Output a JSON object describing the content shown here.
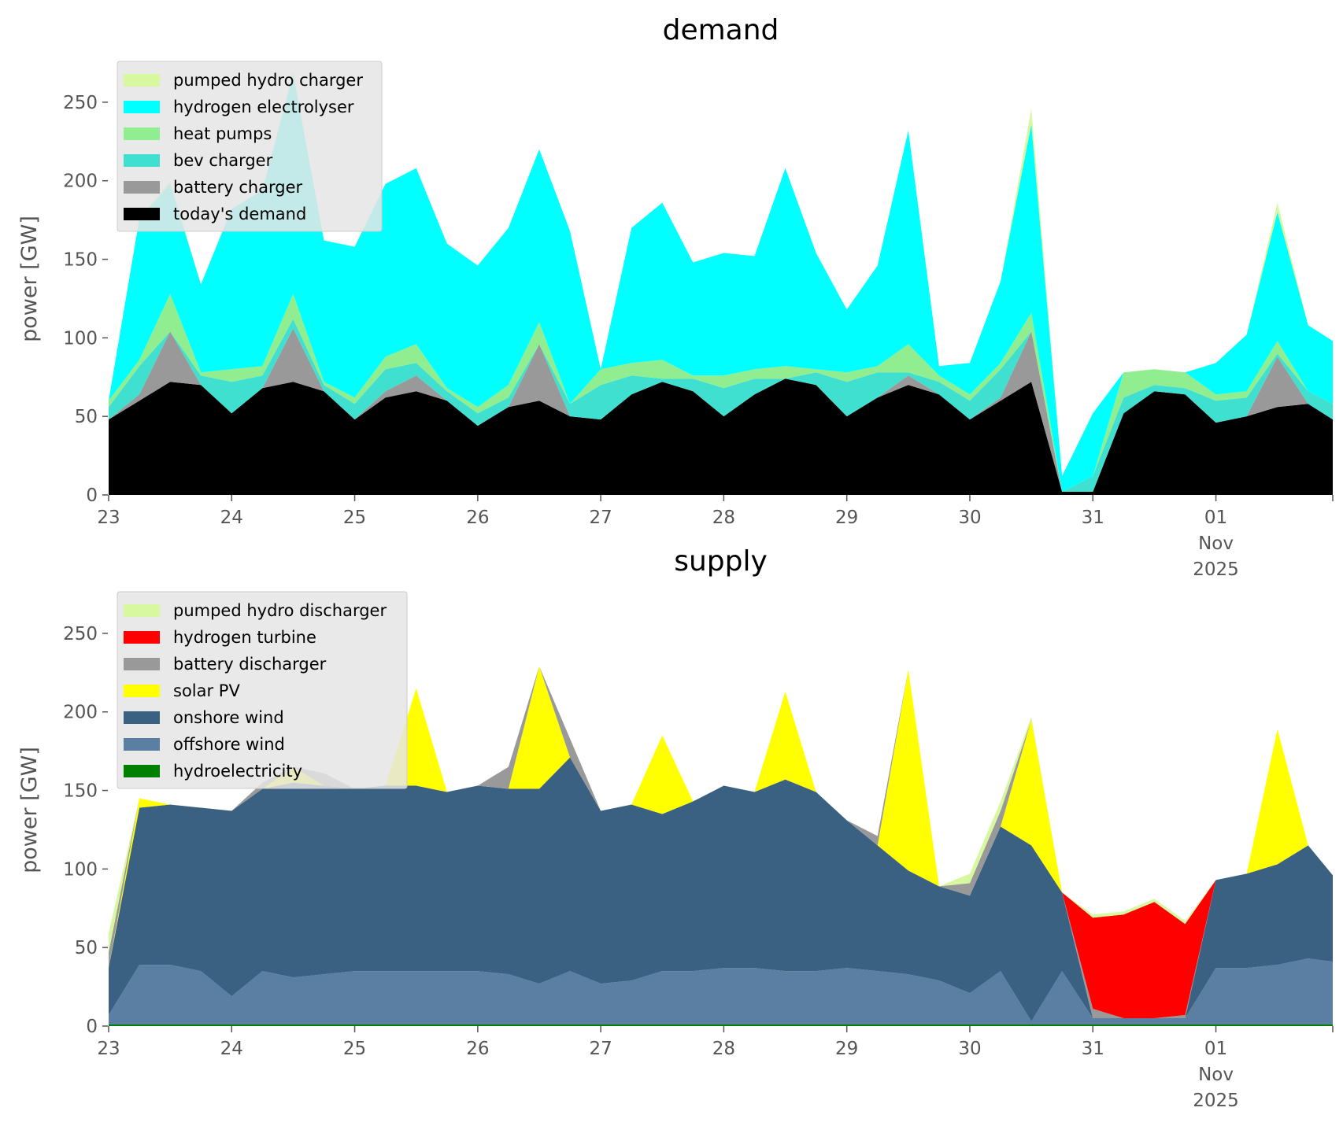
{
  "chart_data": [
    {
      "type": "area",
      "stacked": true,
      "title": "demand",
      "ylabel": "power [GW]",
      "xlabel": "",
      "ylim": [
        0,
        275
      ],
      "yticks": [
        0,
        50,
        100,
        150,
        200,
        250
      ],
      "x_days": [
        23,
        23.25,
        23.5,
        23.75,
        24,
        24.25,
        24.5,
        24.75,
        25,
        25.25,
        25.5,
        25.75,
        26,
        26.25,
        26.5,
        26.75,
        27,
        27.25,
        27.5,
        27.75,
        28,
        28.25,
        28.5,
        28.75,
        29,
        29.25,
        29.5,
        29.75,
        30,
        30.25,
        30.5,
        30.75,
        31,
        31.25,
        31.5,
        31.75,
        32,
        32.25,
        32.5,
        32.75,
        32.95
      ],
      "xtick_labels": [
        "23",
        "24",
        "25",
        "26",
        "27",
        "28",
        "29",
        "30",
        "31",
        "01\nNov\n2025"
      ],
      "xtick_values": [
        23,
        24,
        25,
        26,
        27,
        28,
        29,
        30,
        31,
        32
      ],
      "legend_position": "top-left",
      "series": [
        {
          "name": "today's demand",
          "color": "#000000",
          "values": [
            48,
            60,
            72,
            70,
            52,
            68,
            72,
            66,
            48,
            62,
            66,
            60,
            44,
            56,
            60,
            50,
            48,
            64,
            72,
            66,
            50,
            64,
            74,
            70,
            50,
            62,
            70,
            64,
            48,
            60,
            72,
            2,
            2,
            52,
            66,
            64,
            46,
            50,
            56,
            58,
            48
          ]
        },
        {
          "name": "battery charger",
          "color": "#999999",
          "values": [
            0,
            4,
            32,
            0,
            0,
            0,
            34,
            0,
            0,
            4,
            10,
            0,
            0,
            0,
            36,
            0,
            0,
            0,
            0,
            0,
            0,
            0,
            0,
            0,
            0,
            0,
            6,
            0,
            0,
            2,
            32,
            0,
            0,
            0,
            0,
            0,
            0,
            0,
            32,
            0,
            0
          ]
        },
        {
          "name": "bev charger",
          "color": "#40e0d0",
          "values": [
            8,
            18,
            0,
            6,
            20,
            8,
            6,
            4,
            10,
            14,
            8,
            6,
            8,
            6,
            0,
            8,
            22,
            12,
            2,
            8,
            18,
            10,
            0,
            8,
            22,
            16,
            2,
            8,
            12,
            18,
            0,
            0,
            10,
            10,
            4,
            4,
            14,
            12,
            2,
            8,
            10
          ]
        },
        {
          "name": "heat pumps",
          "color": "#90ee90",
          "values": [
            4,
            4,
            24,
            2,
            8,
            6,
            16,
            2,
            4,
            8,
            12,
            2,
            4,
            8,
            14,
            0,
            10,
            8,
            12,
            2,
            8,
            6,
            8,
            2,
            6,
            4,
            18,
            4,
            4,
            4,
            12,
            0,
            0,
            16,
            10,
            10,
            4,
            4,
            8,
            0,
            0
          ]
        },
        {
          "name": "hydrogen electrolyser",
          "color": "#00ffff",
          "values": [
            0,
            90,
            70,
            56,
            102,
            112,
            140,
            90,
            96,
            110,
            112,
            92,
            90,
            100,
            110,
            110,
            0,
            86,
            100,
            72,
            78,
            72,
            126,
            74,
            40,
            64,
            136,
            6,
            20,
            52,
            120,
            10,
            40,
            0,
            0,
            0,
            20,
            36,
            82,
            42,
            40
          ]
        },
        {
          "name": "pumped hydro charger",
          "color": "#d8f8a0",
          "values": [
            0,
            0,
            2,
            0,
            0,
            0,
            2,
            0,
            0,
            0,
            0,
            0,
            0,
            0,
            0,
            0,
            0,
            0,
            0,
            0,
            0,
            0,
            0,
            0,
            0,
            0,
            0,
            0,
            0,
            0,
            10,
            0,
            0,
            0,
            0,
            0,
            0,
            0,
            6,
            0,
            0
          ]
        }
      ]
    },
    {
      "type": "area",
      "stacked": true,
      "title": "supply",
      "ylabel": "power [GW]",
      "xlabel": "",
      "ylim": [
        0,
        275
      ],
      "yticks": [
        0,
        50,
        100,
        150,
        200,
        250
      ],
      "x_days": [
        23,
        23.25,
        23.5,
        23.75,
        24,
        24.25,
        24.5,
        24.75,
        25,
        25.25,
        25.5,
        25.75,
        26,
        26.25,
        26.5,
        26.75,
        27,
        27.25,
        27.5,
        27.75,
        28,
        28.25,
        28.5,
        28.75,
        29,
        29.25,
        29.5,
        29.75,
        30,
        30.25,
        30.5,
        30.75,
        31,
        31.25,
        31.5,
        31.75,
        32,
        32.25,
        32.5,
        32.75,
        32.95
      ],
      "xtick_labels": [
        "23",
        "24",
        "25",
        "26",
        "27",
        "28",
        "29",
        "30",
        "31",
        "01\nNov\n2025"
      ],
      "xtick_values": [
        23,
        24,
        25,
        26,
        27,
        28,
        29,
        30,
        31,
        32
      ],
      "legend_position": "top-left",
      "series": [
        {
          "name": "hydroelectricity",
          "color": "#008000",
          "values": [
            1,
            1,
            1,
            1,
            1,
            1,
            1,
            1,
            1,
            1,
            1,
            1,
            1,
            1,
            1,
            1,
            1,
            1,
            1,
            1,
            1,
            1,
            1,
            1,
            1,
            1,
            1,
            1,
            1,
            1,
            1,
            1,
            1,
            1,
            1,
            1,
            1,
            1,
            1,
            1,
            1
          ]
        },
        {
          "name": "offshore wind",
          "color": "#5b7fa3",
          "values": [
            6,
            38,
            38,
            34,
            18,
            34,
            30,
            32,
            34,
            34,
            34,
            34,
            34,
            32,
            26,
            34,
            26,
            28,
            34,
            34,
            36,
            36,
            34,
            34,
            36,
            34,
            32,
            28,
            20,
            34,
            2,
            34,
            4,
            4,
            4,
            4,
            36,
            36,
            38,
            42,
            40
          ]
        },
        {
          "name": "onshore wind",
          "color": "#3b6182",
          "values": [
            30,
            100,
            102,
            104,
            118,
            116,
            124,
            120,
            116,
            118,
            118,
            114,
            118,
            118,
            124,
            136,
            110,
            112,
            100,
            108,
            116,
            112,
            122,
            114,
            94,
            80,
            66,
            60,
            62,
            92,
            112,
            50,
            0,
            0,
            0,
            0,
            56,
            60,
            64,
            72,
            55
          ]
        },
        {
          "name": "solar PV",
          "color": "#ffff00",
          "values": [
            0,
            6,
            0,
            0,
            0,
            0,
            10,
            0,
            0,
            0,
            62,
            0,
            0,
            0,
            78,
            0,
            0,
            0,
            50,
            0,
            0,
            0,
            56,
            0,
            0,
            0,
            128,
            0,
            0,
            0,
            80,
            0,
            0,
            0,
            0,
            0,
            0,
            0,
            86,
            0,
            0
          ]
        },
        {
          "name": "battery discharger",
          "color": "#999999",
          "values": [
            10,
            0,
            0,
            0,
            0,
            4,
            0,
            8,
            0,
            0,
            0,
            0,
            0,
            14,
            0,
            12,
            0,
            0,
            0,
            0,
            0,
            0,
            0,
            0,
            0,
            6,
            0,
            0,
            8,
            10,
            0,
            0,
            6,
            0,
            0,
            2,
            0,
            0,
            0,
            0,
            0
          ]
        },
        {
          "name": "hydrogen turbine",
          "color": "#ff0000",
          "values": [
            0,
            0,
            0,
            0,
            0,
            0,
            0,
            0,
            0,
            0,
            0,
            0,
            0,
            0,
            0,
            0,
            0,
            0,
            0,
            0,
            0,
            0,
            0,
            0,
            0,
            0,
            0,
            0,
            0,
            0,
            0,
            0,
            58,
            66,
            74,
            58,
            0,
            0,
            0,
            0,
            0
          ]
        },
        {
          "name": "pumped hydro discharger",
          "color": "#d8f8a0",
          "values": [
            12,
            0,
            0,
            0,
            0,
            0,
            0,
            0,
            0,
            0,
            0,
            0,
            0,
            0,
            0,
            0,
            0,
            0,
            0,
            0,
            0,
            0,
            0,
            0,
            0,
            0,
            0,
            0,
            6,
            6,
            2,
            0,
            2,
            2,
            2,
            2,
            0,
            0,
            0,
            0,
            0
          ]
        }
      ]
    }
  ]
}
